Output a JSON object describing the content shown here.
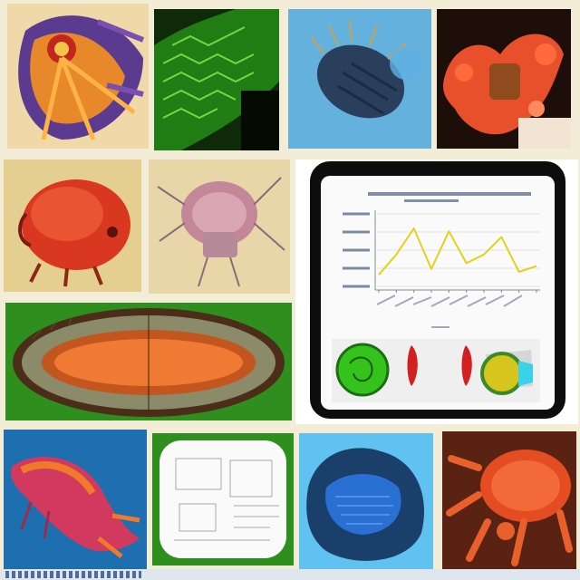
{
  "collage": {
    "tiles": [
      {
        "name": "tile-orange-purple-organism"
      },
      {
        "name": "tile-green-cell-mesh"
      },
      {
        "name": "tile-blue-spiny-creature"
      },
      {
        "name": "tile-red-coral-organism"
      },
      {
        "name": "tile-red-mite-illustration"
      },
      {
        "name": "tile-sketched-insect"
      },
      {
        "name": "tile-chart-monitor"
      },
      {
        "name": "tile-green-orange-cell"
      },
      {
        "name": "tile-pink-slug-creature"
      },
      {
        "name": "tile-sketch-frame"
      },
      {
        "name": "tile-blue-textured-blob"
      },
      {
        "name": "tile-red-bug-closeup"
      }
    ]
  },
  "chart_data": {
    "type": "line",
    "title": "",
    "xlabel": "",
    "ylabel": "",
    "x": [
      1,
      2,
      3,
      4,
      5,
      6,
      7,
      8,
      9,
      10
    ],
    "series": [
      {
        "values": [
          8,
          22,
          40,
          12,
          38,
          16,
          22,
          34,
          10,
          14
        ],
        "color": "#e2d21a"
      }
    ],
    "ylim": [
      0,
      50
    ],
    "grid": true
  }
}
